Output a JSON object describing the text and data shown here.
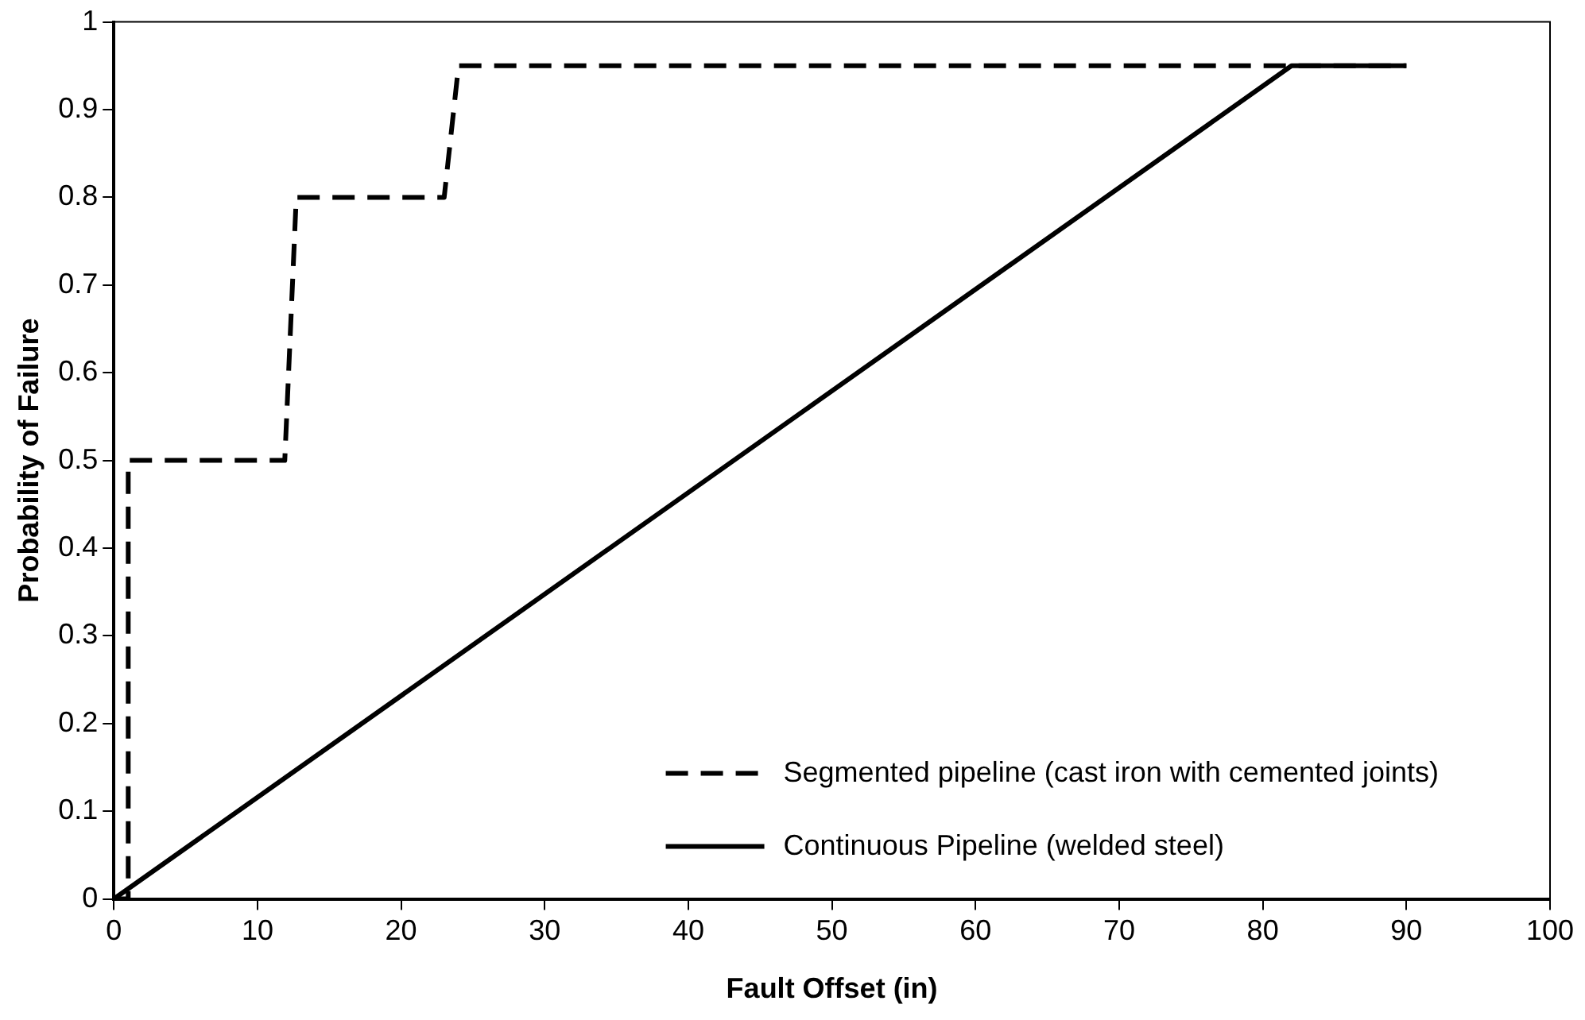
{
  "chart_data": {
    "type": "line",
    "xlabel": "Fault Offset (in)",
    "ylabel": "Probability of Failure",
    "xlim": [
      0,
      100
    ],
    "xticks": [
      0,
      10,
      20,
      30,
      40,
      50,
      60,
      70,
      80,
      90,
      100
    ],
    "ylim": [
      0,
      1
    ],
    "yticks": [
      0,
      0.1,
      0.2,
      0.3,
      0.4,
      0.5,
      0.6,
      0.7,
      0.8,
      0.9,
      1
    ],
    "grid": false,
    "legend": "bottom right",
    "marker": "none",
    "series": [
      {
        "name": "Segmented pipeline (cast iron with cemented joints)",
        "color": "#000000",
        "line_style": "dashed",
        "x": [
          0,
          1,
          1,
          11.9,
          12.7,
          23,
          24,
          90
        ],
        "values": [
          0,
          0,
          0.5,
          0.5,
          0.8,
          0.8,
          0.95,
          0.95
        ]
      },
      {
        "name": "Continuous Pipeline (welded steel)",
        "color": "#000000",
        "line_style": "solid",
        "x": [
          0,
          82,
          90
        ],
        "values": [
          0,
          0.95,
          0.95
        ]
      }
    ]
  }
}
